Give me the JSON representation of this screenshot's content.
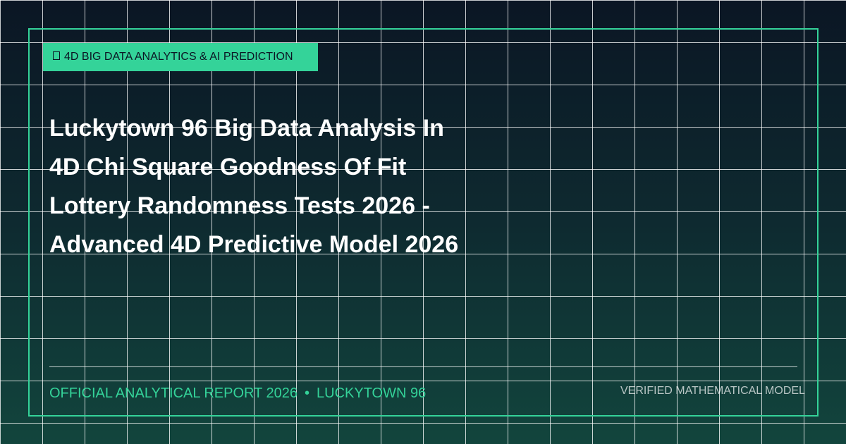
{
  "badge": {
    "icon": "chart-icon",
    "label": "4D BIG DATA ANALYTICS & AI PREDICTION"
  },
  "title": {
    "lines": [
      "Luckytown 96 Big Data Analysis In",
      "4D Chi Square Goodness Of Fit",
      "Lottery Randomness Tests 2026 -",
      "Advanced 4D Predictive Model 2026"
    ]
  },
  "footer": {
    "report": "OFFICIAL ANALYTICAL REPORT 2026",
    "separator": "•",
    "brand": "LUCKYTOWN 96",
    "verified": "VERIFIED MATHEMATICAL MODEL"
  },
  "colors": {
    "accent": "#34d399",
    "background_top": "#0b1624",
    "background_bottom": "#12453d"
  }
}
